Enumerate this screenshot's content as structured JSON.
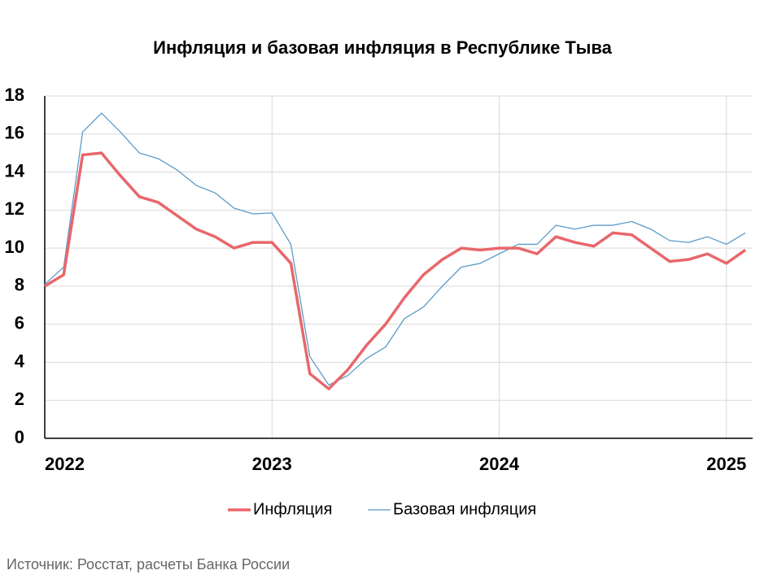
{
  "chart_data": {
    "type": "line",
    "title": "Инфляция и базовая инфляция в Республике Тыва",
    "source": "Источник: Росстат, расчеты Банка России",
    "categories": [
      "2022",
      null,
      null,
      null,
      null,
      null,
      null,
      null,
      null,
      null,
      null,
      null,
      "2023",
      null,
      null,
      null,
      null,
      null,
      null,
      null,
      null,
      null,
      null,
      null,
      "2024",
      null,
      null,
      null,
      null,
      null,
      null,
      null,
      null,
      null,
      null,
      null,
      "2025",
      null
    ],
    "series": [
      {
        "name": "Инфляция",
        "color": "#e8676b",
        "values": [
          8.0,
          8.6,
          14.9,
          15.0,
          13.8,
          12.7,
          12.4,
          11.7,
          11.0,
          10.6,
          10.0,
          10.3,
          10.3,
          9.2,
          3.4,
          2.6,
          3.6,
          4.9,
          6.0,
          7.4,
          8.6,
          9.4,
          10.0,
          9.9,
          10.0,
          10.0,
          9.7,
          10.6,
          10.3,
          10.1,
          10.8,
          10.7,
          10.0,
          9.3,
          9.4,
          9.7,
          9.2,
          9.9
        ]
      },
      {
        "name": "Базовая инфляция",
        "color": "#5b9bc8",
        "values": [
          8.1,
          9.0,
          16.1,
          17.1,
          16.1,
          15.0,
          14.7,
          14.1,
          13.3,
          12.9,
          12.1,
          11.8,
          11.85,
          10.2,
          4.3,
          2.8,
          3.3,
          4.2,
          4.8,
          6.3,
          6.9,
          8.0,
          9.0,
          9.2,
          9.7,
          10.2,
          10.2,
          11.2,
          11.0,
          11.2,
          11.2,
          11.4,
          11.0,
          10.4,
          10.3,
          10.6,
          10.2,
          10.8
        ]
      }
    ],
    "ylim": [
      0,
      18
    ],
    "yticks": [
      0,
      2,
      4,
      6,
      8,
      10,
      12,
      14,
      16,
      18
    ],
    "grid": true,
    "legend": "bottom"
  }
}
